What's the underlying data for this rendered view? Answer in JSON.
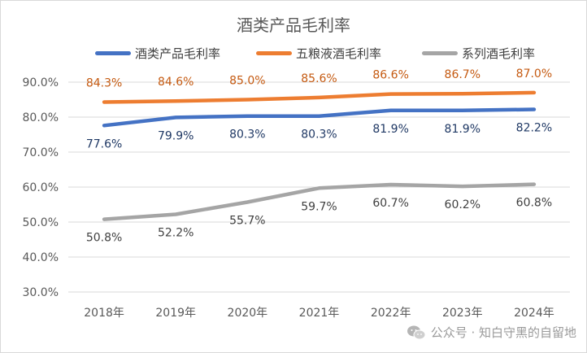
{
  "chart_data": {
    "type": "line",
    "title": "酒类产品毛利率",
    "categories": [
      "2018年",
      "2019年",
      "2020年",
      "2021年",
      "2022年",
      "2023年",
      "2024年"
    ],
    "series": [
      {
        "name": "酒类产品毛利率",
        "color": "#4472c4",
        "label_color": "#1f3864",
        "label_position": "below",
        "values": [
          77.6,
          79.9,
          80.3,
          80.3,
          81.9,
          81.9,
          82.2
        ],
        "labels": [
          "77.6%",
          "79.9%",
          "80.3%",
          "80.3%",
          "81.9%",
          "81.9%",
          "82.2%"
        ]
      },
      {
        "name": "五粮液酒毛利率",
        "color": "#ed7d31",
        "label_color": "#c55a11",
        "label_position": "above",
        "values": [
          84.3,
          84.6,
          85.0,
          85.6,
          86.6,
          86.7,
          87.0
        ],
        "labels": [
          "84.3%",
          "84.6%",
          "85.0%",
          "85.6%",
          "86.6%",
          "86.7%",
          "87.0%"
        ]
      },
      {
        "name": "系列酒毛利率",
        "color": "#a5a5a5",
        "label_color": "#404040",
        "label_position": "below",
        "values": [
          50.8,
          52.2,
          55.7,
          59.7,
          60.7,
          60.2,
          60.8
        ],
        "labels": [
          "50.8%",
          "52.2%",
          "55.7%",
          "59.7%",
          "60.7%",
          "60.2%",
          "60.8%"
        ]
      }
    ],
    "ylim": [
      30,
      90
    ],
    "yticks": [
      30,
      40,
      50,
      60,
      70,
      80,
      90
    ],
    "ytick_labels": [
      "30.0%",
      "40.0%",
      "50.0%",
      "60.0%",
      "70.0%",
      "80.0%",
      "90.0%"
    ],
    "grid": true,
    "legend_position": "top"
  },
  "watermark": {
    "icon": "wechat-icon",
    "text": "公众号 · 知白守黑的自留地"
  }
}
